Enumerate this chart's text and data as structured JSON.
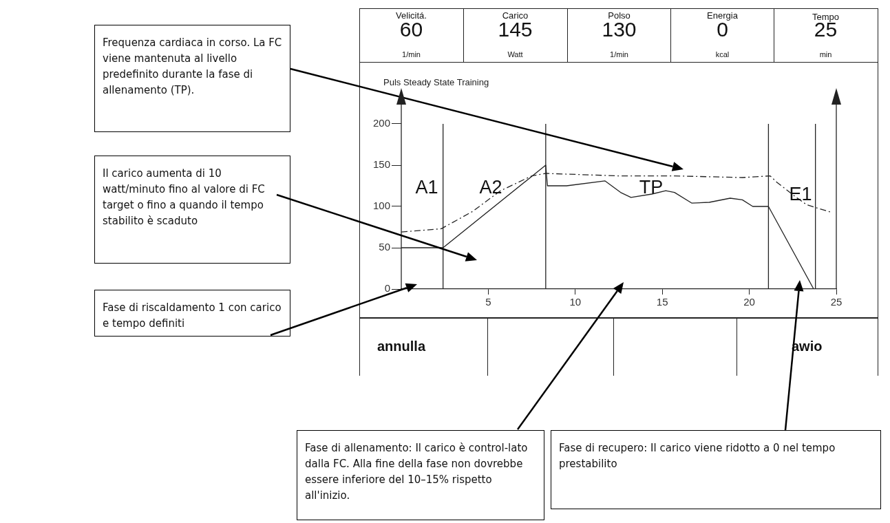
{
  "chart_data": {
    "type": "line",
    "title": "Puls Steady State Training",
    "xlim": [
      0,
      25
    ],
    "xticks": [
      5,
      10,
      15,
      20,
      25
    ],
    "ylim": [
      0,
      240
    ],
    "yticks": [
      0,
      50,
      100,
      150,
      200
    ],
    "grid": false,
    "legend": false,
    "marker": "none",
    "series": [
      {
        "color": "#222222",
        "line_style": "solid",
        "x": [
          0,
          2.4,
          8.3,
          8.4,
          9.5,
          11.7,
          12.6,
          13.2,
          14.4,
          15.2,
          15.7,
          16.7,
          17.7,
          18.9,
          19.6,
          20.2,
          21.1,
          23.7
        ],
        "values": [
          50,
          50,
          150,
          125,
          125,
          131,
          117,
          111,
          115,
          119,
          117,
          104,
          105,
          110,
          108,
          100,
          100,
          0
        ]
      },
      {
        "color": "#222222",
        "line_style": "dashed",
        "x": [
          0,
          2.3,
          4.1,
          5.7,
          7.5,
          8.3,
          12.5,
          15.7,
          19.6,
          21.2,
          21.6,
          22.7,
          23.3,
          24.7
        ],
        "values": [
          69,
          73,
          94,
          119,
          137,
          140,
          137,
          137,
          135,
          137,
          129,
          111,
          102,
          93
        ]
      }
    ],
    "ref_lines": [
      {
        "axis": "x",
        "value": 2.4,
        "color": "#222222"
      },
      {
        "axis": "x",
        "value": 8.3,
        "color": "#222222"
      },
      {
        "axis": "x",
        "value": 21.1,
        "color": "#222222"
      },
      {
        "axis": "x",
        "value": 23.8,
        "color": "#222222"
      }
    ],
    "annotations": [
      "Frequenza cardiaca in corso. La FC viene mantenuta al livello predefinito durante la fase di allenamento (TP).",
      "Il carico aumenta di 10 watt/minuto fino al valore di FC target o fino a quando il tempo stabilito è scaduto",
      "Fase di riscaldamento 1 con carico e tempo definiti",
      "Fase di allenamento: Il carico è control-lato dalla FC. Alla fine della fase non dovrebbe essere inferiore del 10–15% rispetto all'inizio.",
      "Fase di recupero: Il carico viene ridotto a 0 nel tempo prestabilito",
      "Velicitá.",
      "60",
      "1/min",
      "Carico",
      "145",
      "Watt",
      "Polso",
      "130",
      "1/min",
      "Energia",
      "0",
      "kcal",
      "Tempo",
      "25",
      "min",
      "annulla",
      "awio",
      "A1",
      "A2",
      "TP",
      "E1"
    ]
  }
}
